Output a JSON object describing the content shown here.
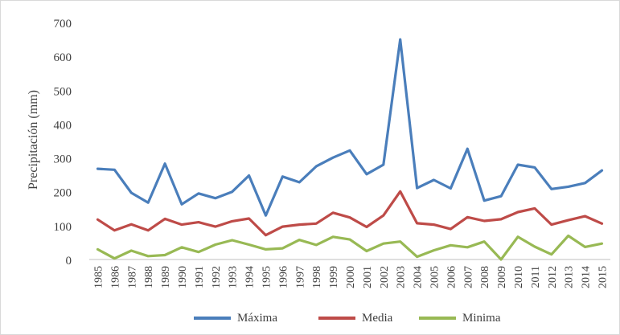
{
  "chart_data": {
    "type": "line",
    "title": "",
    "xlabel": "",
    "ylabel": "Precipitación (mm)",
    "ylim": [
      0,
      700
    ],
    "yticks": [
      0,
      100,
      200,
      300,
      400,
      500,
      600,
      700
    ],
    "grid": false,
    "legend_position": "bottom",
    "categories": [
      "1985",
      "1986",
      "1987",
      "1988",
      "1989",
      "1990",
      "1991",
      "1992",
      "1993",
      "1994",
      "1995",
      "1996",
      "1997",
      "1998",
      "1999",
      "2000",
      "2001",
      "2002",
      "2003",
      "2004",
      "2005",
      "2006",
      "2007",
      "2008",
      "2009",
      "2010",
      "2011",
      "2012",
      "2013",
      "2014",
      "2015"
    ],
    "series": [
      {
        "name": "Máxima",
        "color": "#4a7ebb",
        "values": [
          268,
          265,
          197,
          168,
          283,
          163,
          195,
          181,
          200,
          248,
          130,
          245,
          228,
          275,
          301,
          322,
          252,
          280,
          650,
          211,
          235,
          210,
          327,
          174,
          187,
          280,
          272,
          208,
          215,
          226,
          263
        ]
      },
      {
        "name": "Media",
        "color": "#be4b48",
        "values": [
          118,
          86,
          104,
          86,
          120,
          103,
          110,
          97,
          113,
          121,
          72,
          97,
          103,
          106,
          138,
          124,
          96,
          130,
          201,
          107,
          103,
          90,
          125,
          114,
          119,
          140,
          151,
          103,
          116,
          128,
          106
        ]
      },
      {
        "name": "Minima",
        "color": "#98b954",
        "values": [
          30,
          3,
          26,
          10,
          13,
          36,
          22,
          44,
          57,
          44,
          30,
          33,
          58,
          43,
          67,
          59,
          25,
          47,
          53,
          8,
          27,
          42,
          36,
          53,
          0,
          67,
          38,
          15,
          70,
          37,
          47
        ]
      }
    ]
  }
}
